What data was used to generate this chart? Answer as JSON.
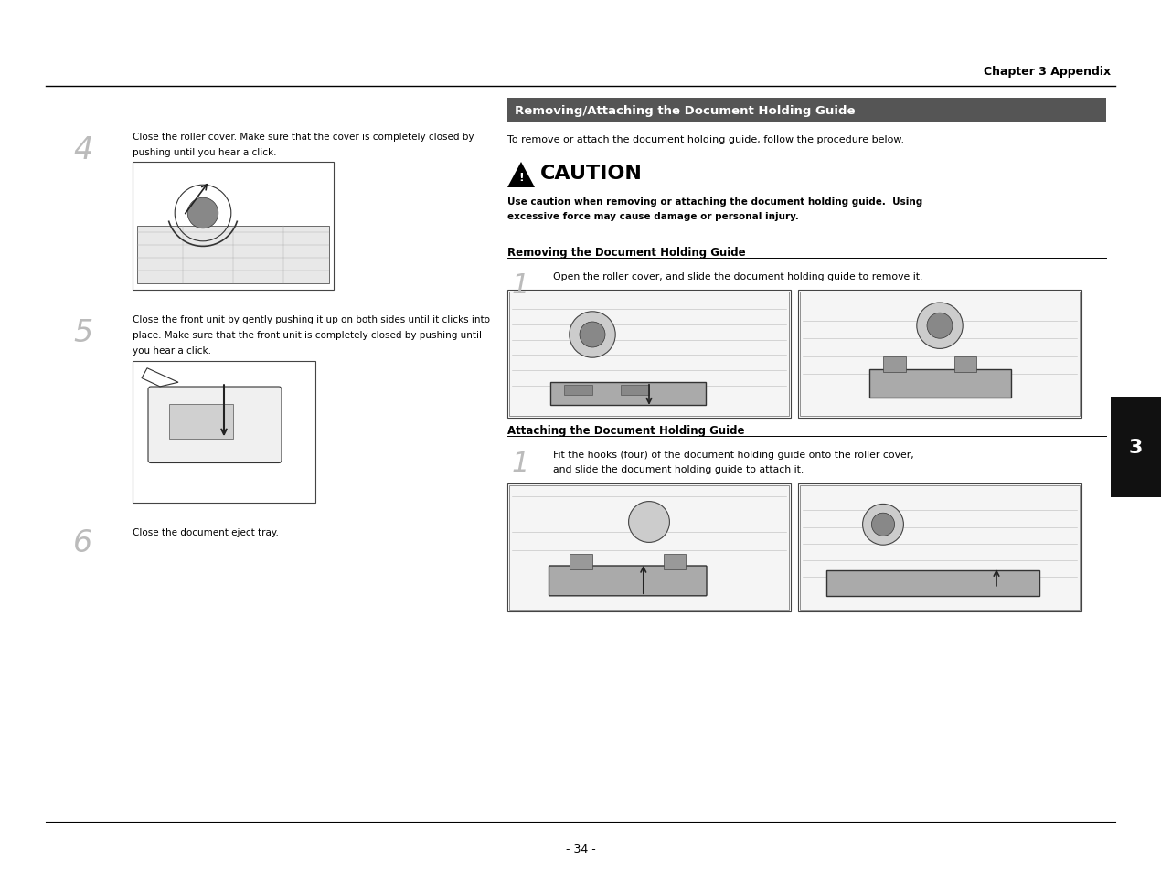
{
  "page_bg": "#ffffff",
  "header_text": "Chapter 3 Appendix",
  "footer_text": "- 34 -",
  "section_header_bg": "#555555",
  "section_header_text": "Removing/Attaching the Document Holding Guide",
  "tab_bg": "#111111",
  "tab_text": "3",
  "right_intro_text": "To remove or attach the document holding guide, follow the procedure below.",
  "caution_title": "CAUTION",
  "caution_body1": "Use caution when removing or attaching the document holding guide.  Using",
  "caution_body2": "excessive force may cause damage or personal injury.",
  "removing_header": "Removing the Document Holding Guide",
  "removing_step1_text": "Open the roller cover, and slide the document holding guide to remove it.",
  "attaching_header": "Attaching the Document Holding Guide",
  "attaching_step1_text1": "Fit the hooks (four) of the document holding guide onto the roller cover,",
  "attaching_step1_text2": "and slide the document holding guide to attach it.",
  "left_step4_text1": "Close the roller cover. Make sure that the cover is completely closed by",
  "left_step4_text2": "pushing until you hear a click.",
  "left_step5_text1": "Close the front unit by gently pushing it up on both sides until it clicks into",
  "left_step5_text2": "place. Make sure that the front unit is completely closed by pushing until",
  "left_step5_text3": "you hear a click.",
  "left_step6_text": "Close the document eject tray."
}
